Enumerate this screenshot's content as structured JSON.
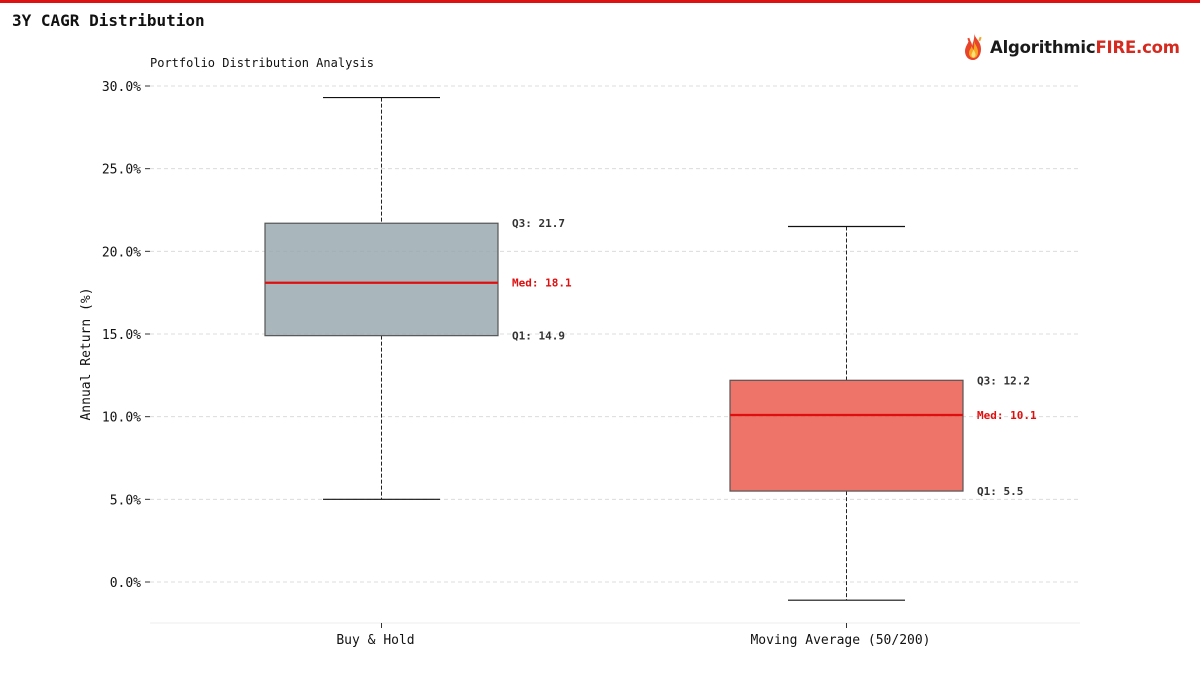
{
  "page": {
    "title": "3Y CAGR Distribution",
    "accent_color": "#dd1111"
  },
  "logo": {
    "text_part1": "Algorithmic",
    "text_part2": "FIRE.com",
    "part2_color": "#d42a1f",
    "icon": "flame-icon"
  },
  "chart_data": {
    "type": "boxplot",
    "subtitle": "Portfolio Distribution Analysis",
    "ylabel": "Annual Return (%)",
    "xlabel": "",
    "ylim": [
      -2.5,
      30.5
    ],
    "yticks": [
      0,
      5,
      10,
      15,
      20,
      25,
      30
    ],
    "ytick_labels": [
      "0.0%",
      "5.0%",
      "10.0%",
      "15.0%",
      "20.0%",
      "25.0%",
      "30.0%"
    ],
    "grid": true,
    "categories": [
      "Buy & Hold",
      "Moving Average (50/200)"
    ],
    "series": [
      {
        "category": "Buy & Hold",
        "whisker_low": 5.0,
        "q1": 14.9,
        "median": 18.1,
        "q3": 21.7,
        "whisker_high": 29.3,
        "color": "#9aa9b0",
        "labels": {
          "q3": "Q3: 21.7",
          "median": "Med: 18.1",
          "q1": "Q1: 14.9"
        }
      },
      {
        "category": "Moving Average (50/200)",
        "whisker_low": -1.1,
        "q1": 5.5,
        "median": 10.1,
        "q3": 12.2,
        "whisker_high": 21.5,
        "color": "#eb5a4e",
        "labels": {
          "q3": "Q3: 12.2",
          "median": "Med: 10.1",
          "q1": "Q1: 5.5"
        }
      }
    ],
    "median_color": "#e00f0f"
  }
}
